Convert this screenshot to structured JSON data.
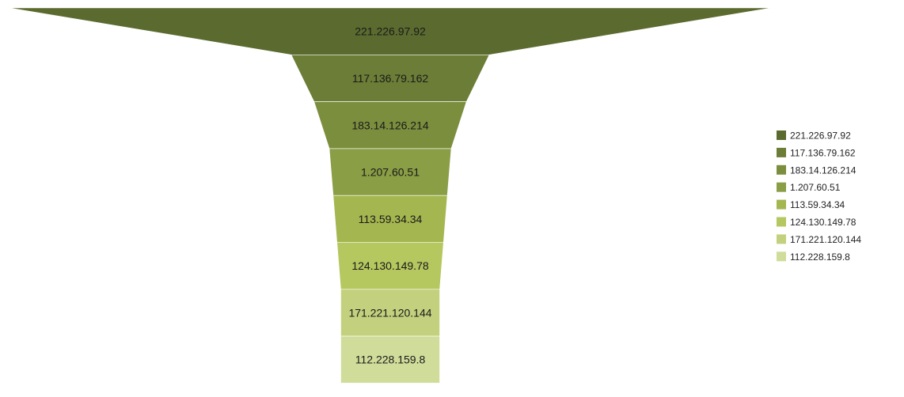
{
  "chart_data": {
    "type": "funnel",
    "title": "",
    "legend_position": "right",
    "stages": [
      {
        "label": "221.226.97.92",
        "value": 100,
        "color": "#5b6b2f"
      },
      {
        "label": "117.136.79.162",
        "value": 26,
        "color": "#6b7d36"
      },
      {
        "label": "183.14.126.214",
        "value": 20,
        "color": "#7b8e3d"
      },
      {
        "label": "1.207.60.51",
        "value": 16,
        "color": "#8a9e45"
      },
      {
        "label": "113.59.34.34",
        "value": 15,
        "color": "#a4b64f"
      },
      {
        "label": "124.130.149.78",
        "value": 14,
        "color": "#b5c75f"
      },
      {
        "label": "171.221.120.144",
        "value": 13,
        "color": "#c3d17e"
      },
      {
        "label": "112.228.159.8",
        "value": 13,
        "color": "#d0dc9a"
      }
    ]
  }
}
